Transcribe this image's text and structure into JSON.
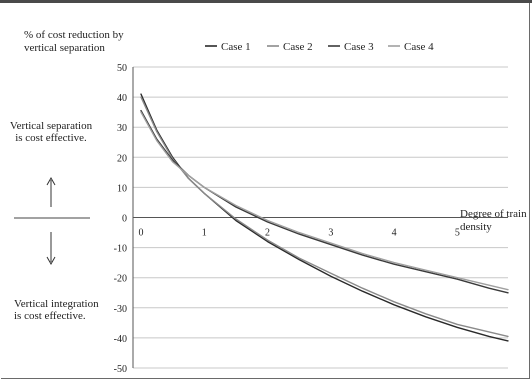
{
  "chart_data": {
    "type": "line",
    "title": "",
    "ylabel": "% of cost reduction by vertical separation",
    "xlabel": "Degree of train density",
    "ylim": [
      -50,
      50
    ],
    "xlim": [
      0,
      5.8
    ],
    "yticks": [
      50,
      40,
      30,
      20,
      10,
      0,
      -10,
      -20,
      -30,
      -40,
      -50
    ],
    "xticks": [
      0,
      1,
      2,
      3,
      4,
      5
    ],
    "grid": "horizontal",
    "legend_position": "top",
    "series": [
      {
        "name": "Case 1",
        "color": "#2a2a2a",
        "x": [
          0,
          0.25,
          0.5,
          0.75,
          1,
          1.5,
          2,
          2.5,
          3,
          3.5,
          4,
          4.5,
          5,
          5.5,
          5.8
        ],
        "y": [
          41,
          29,
          20,
          13,
          8,
          -1,
          -8,
          -14,
          -19.5,
          -24.5,
          -29,
          -33,
          -36.5,
          -39.5,
          -41
        ]
      },
      {
        "name": "Case 2",
        "color": "#8a8a8a",
        "x": [
          0,
          0.25,
          0.5,
          0.75,
          1,
          1.5,
          2,
          2.5,
          3,
          3.5,
          4,
          4.5,
          5,
          5.5,
          5.8
        ],
        "y": [
          40,
          28.5,
          19.5,
          13,
          8,
          -0.5,
          -7.5,
          -13.5,
          -18.5,
          -23.5,
          -28,
          -32,
          -35.5,
          -38,
          -39.5
        ]
      },
      {
        "name": "Case 3",
        "color": "#3a3a3a",
        "x": [
          0,
          0.25,
          0.5,
          0.75,
          1,
          1.5,
          2,
          2.5,
          3,
          3.5,
          4,
          4.5,
          5,
          5.5,
          5.8
        ],
        "y": [
          35.5,
          26,
          19,
          14,
          10,
          3.5,
          -1.5,
          -5.5,
          -9,
          -12.5,
          -15.5,
          -18,
          -20.5,
          -23.5,
          -25
        ]
      },
      {
        "name": "Case 4",
        "color": "#a0a0a0",
        "x": [
          0,
          0.25,
          0.5,
          0.75,
          1,
          1.5,
          2,
          2.5,
          3,
          3.5,
          4,
          4.5,
          5,
          5.5,
          5.8
        ],
        "y": [
          35,
          25.5,
          18.5,
          14,
          10,
          4,
          -1,
          -5,
          -8.5,
          -12,
          -15,
          -17.5,
          -20,
          -22.5,
          -24
        ]
      }
    ],
    "annotations": [
      "Vertical separation is cost effective.",
      "Vertical integration is cost effective."
    ],
    "arrows": [
      "up",
      "down"
    ]
  }
}
